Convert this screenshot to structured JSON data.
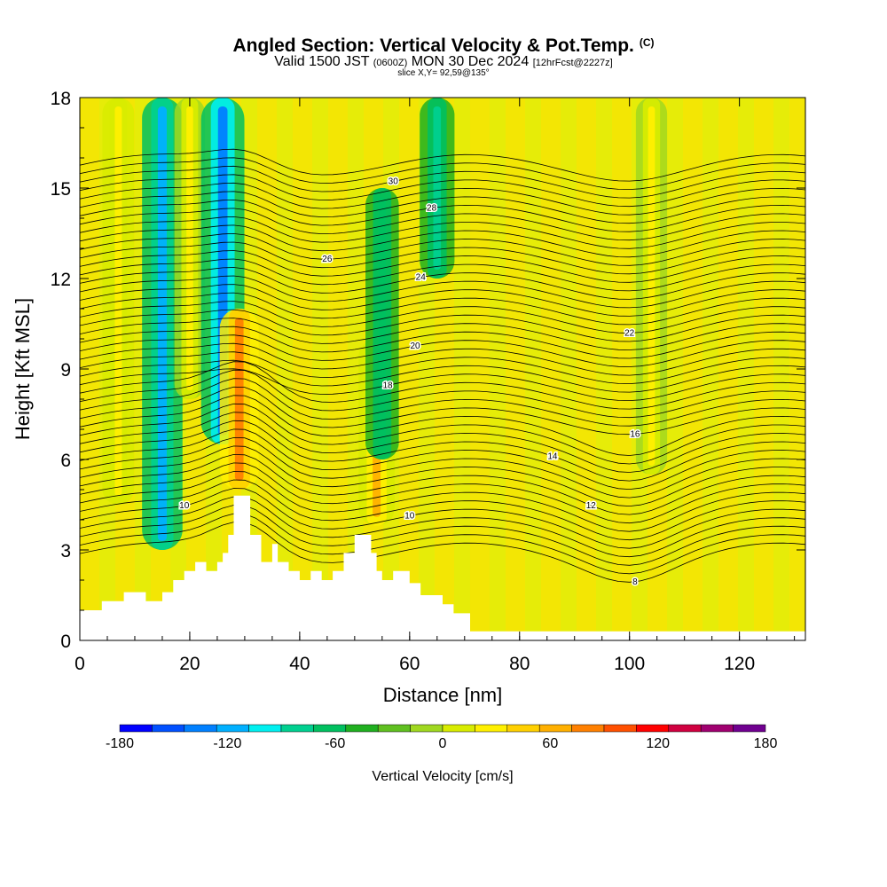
{
  "header": {
    "title": "Angled Section: Vertical Velocity & Pot.Temp.",
    "title_unit": "(C)",
    "subtitle_pre": "Valid 1500 JST",
    "subtitle_zone": "(0600Z)",
    "subtitle_mid": "MON 30 Dec 2024",
    "subtitle_fcst": "[12hrFcst@2227z]",
    "slice": "slice X,Y= 92,59@135°"
  },
  "chart_data": {
    "type": "heatmap",
    "xlabel": "Distance [nm]",
    "ylabel": "Height [Kft MSL]",
    "xlim": [
      0,
      132
    ],
    "ylim": [
      0,
      18
    ],
    "x_ticks": [
      "0",
      "20",
      "40",
      "60",
      "80",
      "100",
      "120"
    ],
    "y_ticks": [
      "0",
      "3",
      "6",
      "9",
      "12",
      "15",
      "18"
    ],
    "colorbar": {
      "label": "Vertical Velocity [cm/s]",
      "tick_labels": [
        "-180",
        "-120",
        "-60",
        "0",
        "60",
        "120",
        "180"
      ],
      "range": [
        -180,
        180
      ],
      "step": 20,
      "colors": [
        "#0000ff",
        "#0050ff",
        "#0080ff",
        "#00b0ff",
        "#00f0f0",
        "#00d090",
        "#00c060",
        "#20b020",
        "#60c020",
        "#a0d820",
        "#d8ec00",
        "#fff000",
        "#ffd000",
        "#ffb000",
        "#ff8000",
        "#ff5000",
        "#ff0000",
        "#d00040",
        "#a00070",
        "#700090"
      ]
    },
    "theta_contour_labels": [
      "8",
      "10",
      "12",
      "14",
      "16",
      "18",
      "20",
      "22",
      "24",
      "26",
      "28",
      "30"
    ],
    "theta_levels": [
      8,
      10,
      12,
      14,
      16,
      18,
      20,
      22,
      24,
      26,
      28,
      30
    ],
    "terrain": [
      [
        0,
        1.0
      ],
      [
        4,
        1.0
      ],
      [
        4,
        1.3
      ],
      [
        8,
        1.3
      ],
      [
        8,
        1.6
      ],
      [
        12,
        1.6
      ],
      [
        12,
        1.3
      ],
      [
        15,
        1.3
      ],
      [
        15,
        1.6
      ],
      [
        17,
        1.6
      ],
      [
        17,
        2.0
      ],
      [
        19,
        2.0
      ],
      [
        19,
        2.3
      ],
      [
        21,
        2.3
      ],
      [
        21,
        2.6
      ],
      [
        23,
        2.6
      ],
      [
        23,
        2.3
      ],
      [
        25,
        2.3
      ],
      [
        25,
        2.6
      ],
      [
        26,
        2.6
      ],
      [
        26,
        2.9
      ],
      [
        27,
        2.9
      ],
      [
        27,
        3.5
      ],
      [
        28,
        3.5
      ],
      [
        28,
        4.8
      ],
      [
        31,
        4.8
      ],
      [
        31,
        3.5
      ],
      [
        33,
        3.5
      ],
      [
        33,
        2.6
      ],
      [
        35,
        2.6
      ],
      [
        35,
        3.2
      ],
      [
        36,
        3.2
      ],
      [
        36,
        2.6
      ],
      [
        38,
        2.6
      ],
      [
        38,
        2.3
      ],
      [
        40,
        2.3
      ],
      [
        40,
        2.0
      ],
      [
        42,
        2.0
      ],
      [
        42,
        2.3
      ],
      [
        44,
        2.3
      ],
      [
        44,
        2.0
      ],
      [
        46,
        2.0
      ],
      [
        46,
        2.3
      ],
      [
        48,
        2.3
      ],
      [
        48,
        2.9
      ],
      [
        50,
        2.9
      ],
      [
        50,
        3.5
      ],
      [
        53,
        3.5
      ],
      [
        53,
        2.9
      ],
      [
        54,
        2.9
      ],
      [
        54,
        2.3
      ],
      [
        55,
        2.3
      ],
      [
        55,
        2.0
      ],
      [
        57,
        2.0
      ],
      [
        57,
        2.3
      ],
      [
        60,
        2.3
      ],
      [
        60,
        1.9
      ],
      [
        62,
        1.9
      ],
      [
        62,
        1.5
      ],
      [
        66,
        1.5
      ],
      [
        66,
        1.2
      ],
      [
        68,
        1.2
      ],
      [
        68,
        0.9
      ],
      [
        71,
        0.9
      ],
      [
        71,
        0.3
      ],
      [
        132,
        0.3
      ]
    ],
    "velocity_features": [
      {
        "x": 7,
        "y_bottom": 4.5,
        "y_top": 18,
        "value": 50
      },
      {
        "x": 15,
        "y_bottom": 3.0,
        "y_top": 18,
        "value": -110
      },
      {
        "x": 20,
        "y_bottom": 8.0,
        "y_top": 18,
        "value": 40
      },
      {
        "x": 26,
        "y_bottom": 6.5,
        "y_top": 18,
        "value": -130
      },
      {
        "x": 29,
        "y_bottom": 5.0,
        "y_top": 11,
        "value": 100
      },
      {
        "x": 54,
        "y_bottom": 3.8,
        "y_top": 10,
        "value": 80
      },
      {
        "x": 55,
        "y_bottom": 6.0,
        "y_top": 15,
        "value": -60
      },
      {
        "x": 65,
        "y_bottom": 12.0,
        "y_top": 18,
        "value": -70
      },
      {
        "x": 104,
        "y_bottom": 5.5,
        "y_top": 18,
        "value": 45
      }
    ]
  }
}
